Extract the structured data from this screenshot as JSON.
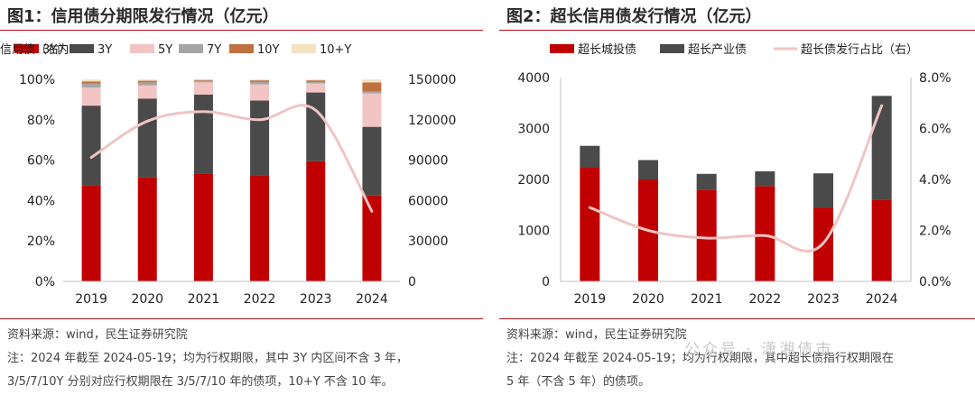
{
  "left": {
    "title": "图1：信用债分期限发行情况（亿元）",
    "source": "资料来源：wind，民生证券研究院",
    "note_line1": "注：2024 年截至 2024-05-19；均为行权期限，其中 3Y 内区间不含 3 年，",
    "note_line2": "3/5/7/10Y 分别对应行权期限在 3/5/7/10 年的债项，10+Y 不含 10 年。"
  },
  "right": {
    "title": "图2：超长信用债发行情况（亿元）",
    "source": "资料来源：wind，民生证券研究院",
    "note_line1": "注：2024 年截至 2024-05-19；均为行权期限，其中超长债指行权期限在",
    "note_line2": "5 年（不含 5 年）的债项。",
    "watermark": "公众号 · 潇湘债市"
  },
  "chart_data": [
    {
      "type": "bar",
      "stacked": true,
      "title": "图1：信用债分期限发行情况（亿元）",
      "categories": [
        "2019",
        "2020",
        "2021",
        "2022",
        "2023",
        "2024"
      ],
      "ylim": [
        0,
        100
      ],
      "yticks": [
        "0%",
        "20%",
        "40%",
        "60%",
        "80%",
        "100%"
      ],
      "y2lim": [
        0,
        150000
      ],
      "y2ticks": [
        "0",
        "30000",
        "60000",
        "90000",
        "120000",
        "150000"
      ],
      "series": [
        {
          "name": "3Y内",
          "color": "#c00000",
          "values": [
            47.5,
            51.5,
            53.5,
            52.5,
            59.5,
            42.5
          ]
        },
        {
          "name": "3Y",
          "color": "#4a4a4a",
          "values": [
            39.5,
            39.0,
            39.0,
            37.0,
            34.0,
            34.0
          ]
        },
        {
          "name": "5Y",
          "color": "#f2c4c4",
          "values": [
            9.0,
            6.5,
            6.0,
            8.0,
            4.5,
            16.5
          ]
        },
        {
          "name": "7Y",
          "color": "#a6a6a6",
          "values": [
            2.0,
            1.5,
            0.8,
            1.2,
            0.7,
            1.0
          ]
        },
        {
          "name": "10Y",
          "color": "#c07040",
          "values": [
            1.0,
            0.8,
            0.4,
            0.8,
            0.8,
            4.5
          ]
        },
        {
          "name": "10+Y",
          "color": "#f3e3c0",
          "values": [
            1.0,
            0.7,
            0.3,
            0.5,
            0.5,
            1.5
          ]
        }
      ],
      "line": {
        "name": "信用债（右）",
        "color": "#f0c4c4",
        "axis": "right",
        "values": [
          92000,
          119000,
          126000,
          120000,
          127000,
          52000
        ]
      }
    },
    {
      "type": "bar",
      "stacked": true,
      "title": "图2：超长信用债发行情况（亿元）",
      "categories": [
        "2019",
        "2020",
        "2021",
        "2022",
        "2023",
        "2024"
      ],
      "ylim": [
        0,
        4000
      ],
      "yticks": [
        "0",
        "1000",
        "2000",
        "3000",
        "4000"
      ],
      "y2lim": [
        0,
        8
      ],
      "y2ticks": [
        "0.0%",
        "2.0%",
        "4.0%",
        "6.0%",
        "8.0%"
      ],
      "series": [
        {
          "name": "超长城投债",
          "color": "#c00000",
          "values": [
            2230,
            2000,
            1800,
            1870,
            1450,
            1600
          ]
        },
        {
          "name": "超长产业债",
          "color": "#4a4a4a",
          "values": [
            430,
            380,
            310,
            290,
            670,
            2040
          ]
        }
      ],
      "line": {
        "name": "超长债发行占比（右）",
        "color": "#f0c4c4",
        "axis": "right",
        "values": [
          2.9,
          2.0,
          1.7,
          1.8,
          1.5,
          6.9
        ]
      }
    }
  ]
}
